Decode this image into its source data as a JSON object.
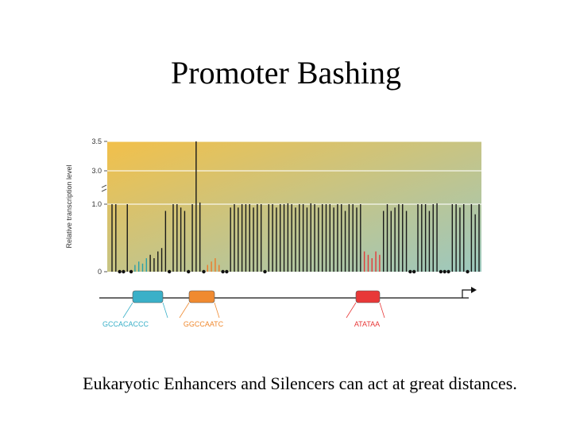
{
  "slide": {
    "title": "Promoter Bashing",
    "caption": "Eukaryotic Enhancers and Silencers can act at great distances."
  },
  "colors": {
    "bar_normal": "#1a1a1a",
    "bar_element1": "#2aa0a8",
    "bar_element2": "#ee7a2a",
    "bar_tata": "#e23a3a",
    "box_element1": "#3ab0c8",
    "box_element2": "#f08a30",
    "box_tata": "#e83838",
    "gradient_left": "#f2c04a",
    "gradient_right": "#9cc8bf"
  },
  "chart_data": {
    "type": "bar",
    "ylabel": "Relative transcription level",
    "yticks": [
      "0",
      "1.0",
      "3.0",
      "3.5"
    ],
    "ylim": [
      0,
      3.5
    ],
    "axis_break": true,
    "zero_marker": "dot",
    "elements": [
      {
        "name": "GCCACACCC",
        "color_key": "box_element1"
      },
      {
        "name": "GGCCAATC",
        "color_key": "box_element2"
      },
      {
        "name": "ATATAA",
        "color_key": "box_tata"
      }
    ],
    "values": [
      1.0,
      1.0,
      0,
      0,
      1.0,
      0,
      0.1,
      0.15,
      0.12,
      0.2,
      0.25,
      0.2,
      0.3,
      0.35,
      0.9,
      0,
      1.0,
      1.0,
      0.95,
      0.9,
      0,
      1.0,
      3.5,
      1.1,
      0,
      0.1,
      0.15,
      0.2,
      0.1,
      0,
      0,
      0.95,
      1.0,
      0.95,
      1.0,
      1.0,
      1.0,
      0.95,
      1.0,
      1.0,
      0,
      1.0,
      1.0,
      0.95,
      1.0,
      1.0,
      1.05,
      1.0,
      0.95,
      1.0,
      1.0,
      0.95,
      1.05,
      1.0,
      0.95,
      1.0,
      1.0,
      1.0,
      0.95,
      1.0,
      1.0,
      0.9,
      1.0,
      1.0,
      0.95,
      1.0,
      0.3,
      0.25,
      0.2,
      0.3,
      0.25,
      0.9,
      1.0,
      0.9,
      0.95,
      1.0,
      1.0,
      0.9,
      0,
      0,
      1.0,
      1.0,
      1.0,
      0.9,
      1.0,
      1.05,
      0,
      0,
      0,
      1.0,
      1.0,
      0.95,
      1.0,
      0,
      1.0,
      0.85,
      1.0
    ],
    "bar_colors": [
      "n",
      "n",
      "n",
      "n",
      "n",
      "n",
      "e1",
      "e1",
      "e1",
      "e1",
      "n",
      "n",
      "n",
      "n",
      "n",
      "n",
      "n",
      "n",
      "n",
      "n",
      "n",
      "n",
      "n",
      "n",
      "n",
      "e2",
      "e2",
      "e2",
      "e2",
      "n",
      "n",
      "n",
      "n",
      "n",
      "n",
      "n",
      "n",
      "n",
      "n",
      "n",
      "n",
      "n",
      "n",
      "n",
      "n",
      "n",
      "n",
      "n",
      "n",
      "n",
      "n",
      "n",
      "n",
      "n",
      "n",
      "n",
      "n",
      "n",
      "n",
      "n",
      "n",
      "n",
      "n",
      "n",
      "n",
      "n",
      "t",
      "t",
      "t",
      "t",
      "t",
      "n",
      "n",
      "n",
      "n",
      "n",
      "n",
      "n",
      "n",
      "n",
      "n",
      "n",
      "n",
      "n",
      "n",
      "n",
      "n",
      "n",
      "n",
      "n",
      "n",
      "n",
      "n",
      "n",
      "n",
      "n",
      "n"
    ]
  }
}
